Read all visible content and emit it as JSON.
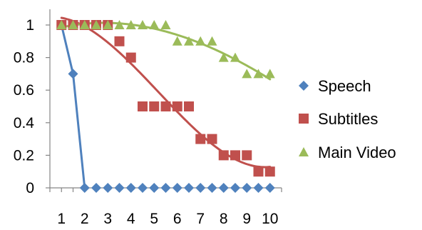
{
  "chart_data": {
    "type": "scatter",
    "title": "",
    "xlabel": "",
    "ylabel": "",
    "xlim": [
      1,
      10
    ],
    "ylim": [
      0,
      1
    ],
    "x_ticks": [
      1,
      2,
      3,
      4,
      5,
      6,
      7,
      8,
      9,
      10
    ],
    "x_tick_labels": [
      "1",
      "2",
      "3",
      "4",
      "5",
      "6",
      "7",
      "8",
      "9",
      "10"
    ],
    "y_ticks": [
      0,
      0.2,
      0.4,
      0.6,
      0.8,
      1
    ],
    "y_tick_labels": [
      "0",
      "0.2",
      "0.4",
      "0.6",
      "0.8",
      "1"
    ],
    "x_minor_step": 0.5,
    "grid": false,
    "legend_position": "right",
    "series": [
      {
        "name": "Speech",
        "color": "#4F81BD",
        "marker": "diamond",
        "trendline": true,
        "points": [
          [
            1,
            1
          ],
          [
            1.5,
            0.7
          ],
          [
            2,
            0
          ],
          [
            2.5,
            0
          ],
          [
            3,
            0
          ],
          [
            3.5,
            0
          ],
          [
            4,
            0
          ],
          [
            4.5,
            0
          ],
          [
            5,
            0
          ],
          [
            5.5,
            0
          ],
          [
            6,
            0
          ],
          [
            6.5,
            0
          ],
          [
            7,
            0
          ],
          [
            7.5,
            0
          ],
          [
            8,
            0
          ],
          [
            8.5,
            0
          ],
          [
            9,
            0
          ],
          [
            9.5,
            0
          ],
          [
            10,
            0
          ]
        ]
      },
      {
        "name": "Subtitles",
        "color": "#C0504D",
        "marker": "square",
        "trendline": true,
        "points": [
          [
            1,
            1
          ],
          [
            1.5,
            1
          ],
          [
            2,
            1
          ],
          [
            2.5,
            1
          ],
          [
            3,
            1
          ],
          [
            3.5,
            0.9
          ],
          [
            4,
            0.8
          ],
          [
            4.5,
            0.5
          ],
          [
            5,
            0.5
          ],
          [
            5.5,
            0.5
          ],
          [
            6,
            0.5
          ],
          [
            6.5,
            0.5
          ],
          [
            7,
            0.3
          ],
          [
            7.5,
            0.3
          ],
          [
            8,
            0.2
          ],
          [
            8.5,
            0.2
          ],
          [
            9,
            0.2
          ],
          [
            9.5,
            0.1
          ],
          [
            10,
            0.1
          ]
        ]
      },
      {
        "name": "Main Video",
        "color": "#9BBB59",
        "marker": "triangle",
        "trendline": true,
        "points": [
          [
            1,
            1
          ],
          [
            1.5,
            1
          ],
          [
            2,
            1
          ],
          [
            2.5,
            1
          ],
          [
            3,
            1
          ],
          [
            3.5,
            1
          ],
          [
            4,
            1
          ],
          [
            4.5,
            1
          ],
          [
            5,
            1
          ],
          [
            5.5,
            1
          ],
          [
            6,
            0.9
          ],
          [
            6.5,
            0.9
          ],
          [
            7,
            0.9
          ],
          [
            7.5,
            0.9
          ],
          [
            8,
            0.8
          ],
          [
            8.5,
            0.8
          ],
          [
            9,
            0.7
          ],
          [
            9.5,
            0.7
          ],
          [
            10,
            0.7
          ]
        ]
      }
    ]
  }
}
